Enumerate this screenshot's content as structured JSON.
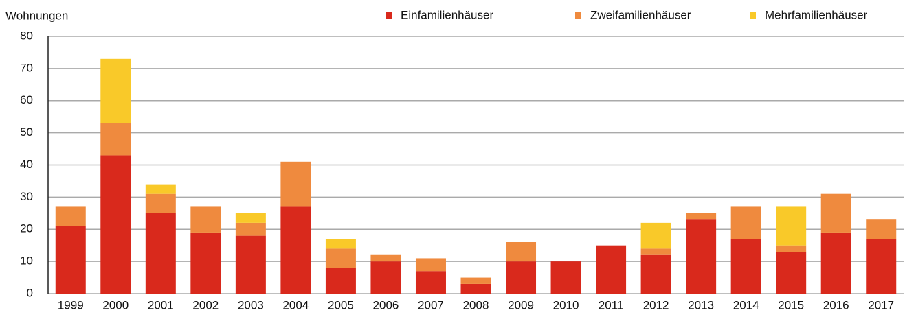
{
  "chart_data": {
    "type": "stacked_bar",
    "ylabel": "Wohnungen",
    "categories": [
      "1999",
      "2000",
      "2001",
      "2002",
      "2003",
      "2004",
      "2005",
      "2006",
      "2007",
      "2008",
      "2009",
      "2010",
      "2011",
      "2012",
      "2013",
      "2014",
      "2015",
      "2016",
      "2017"
    ],
    "series": [
      {
        "name": "Einfamilienhäuser",
        "color": "#d9291c",
        "values": [
          21,
          43,
          25,
          19,
          18,
          27,
          8,
          10,
          7,
          3,
          10,
          10,
          15,
          12,
          23,
          17,
          13,
          19,
          17
        ]
      },
      {
        "name": "Zweifamilienhäuser",
        "color": "#ef8a3e",
        "values": [
          6,
          10,
          6,
          8,
          4,
          14,
          6,
          2,
          4,
          2,
          6,
          0,
          0,
          2,
          2,
          10,
          2,
          12,
          6
        ]
      },
      {
        "name": "Mehrfamilienhäuser",
        "color": "#f9c929",
        "values": [
          0,
          20,
          3,
          0,
          3,
          0,
          3,
          0,
          0,
          0,
          0,
          0,
          0,
          8,
          0,
          0,
          12,
          0,
          0
        ]
      }
    ],
    "ylim": [
      0,
      80
    ],
    "yticks": [
      0,
      10,
      20,
      30,
      40,
      50,
      60,
      70,
      80
    ],
    "grid": true,
    "legend": "top-right"
  }
}
